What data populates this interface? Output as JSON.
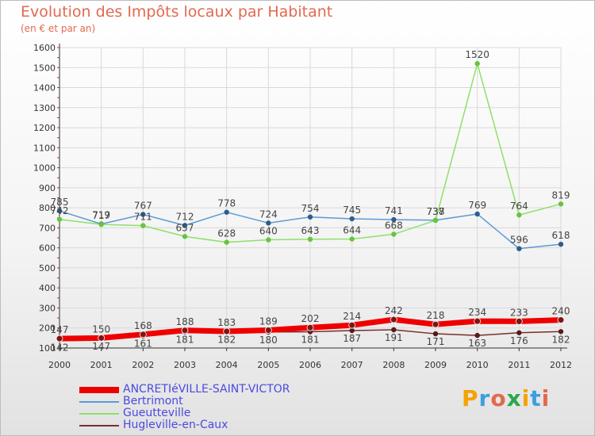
{
  "header": {
    "title": "Evolution des Impôts locaux par Habitant",
    "subtitle": "(en € et par an)"
  },
  "logo": {
    "text": "Proxiti"
  },
  "colors": {
    "title": "#e2694f",
    "axis": "#333333",
    "grid": "#d9d9d9",
    "legend_text": "#4a4ae0"
  },
  "chart_data": {
    "type": "line",
    "x": [
      "2000",
      "2001",
      "2002",
      "2003",
      "2004",
      "2005",
      "2006",
      "2007",
      "2008",
      "2009",
      "2010",
      "2011",
      "2012"
    ],
    "yticks": [
      "100",
      "200",
      "300",
      "400",
      "500",
      "600",
      "700",
      "800",
      "900",
      "1000",
      "1100",
      "1200",
      "1300",
      "1400",
      "1500",
      "1600"
    ],
    "ylim": [
      100,
      1600
    ],
    "grid": true,
    "legend_position": "bottom-left",
    "series": [
      {
        "name": "ANCRETIéVILLE-SAINT-VICTOR",
        "color": "#ee0000",
        "dot": "#7f1414",
        "width": 7,
        "values": [
          147,
          150,
          168,
          188,
          183,
          189,
          202,
          214,
          242,
          218,
          234,
          233,
          240
        ],
        "labels": [
          "147",
          "150",
          "168",
          "188",
          "183",
          "189",
          "202",
          "214",
          "242",
          "218",
          "234",
          "233",
          "240"
        ]
      },
      {
        "name": "Bertrimont",
        "color": "#5b9bd5",
        "dot": "#2e5d8e",
        "width": 1.5,
        "values": [
          785,
          719,
          767,
          712,
          778,
          724,
          754,
          745,
          741,
          738,
          769,
          596,
          618
        ],
        "labels": [
          "785",
          "719",
          "767",
          "712",
          "778",
          "724",
          "754",
          "745",
          "741",
          "738",
          "769",
          "596",
          "618"
        ]
      },
      {
        "name": "Gueutteville",
        "color": "#8ee06a",
        "dot": "#67c43e",
        "width": 1.5,
        "values": [
          742,
          717,
          711,
          657,
          628,
          640,
          643,
          644,
          668,
          737,
          1520,
          764,
          819
        ],
        "labels": [
          "742",
          "717",
          "711",
          "657",
          "628",
          "640",
          "643",
          "644",
          "668",
          "737",
          "1520",
          "764",
          "819"
        ]
      },
      {
        "name": "Hugleville-en-Caux",
        "color": "#7a2e2e",
        "dot": "#5a1a1a",
        "width": 1.5,
        "values": [
          142,
          147,
          161,
          181,
          182,
          180,
          181,
          187,
          191,
          171,
          163,
          176,
          182
        ],
        "labels": [
          "142",
          "147",
          "161",
          "181",
          "182",
          "180",
          "181",
          "187",
          "191",
          "171",
          "163",
          "176",
          "182"
        ]
      }
    ]
  }
}
